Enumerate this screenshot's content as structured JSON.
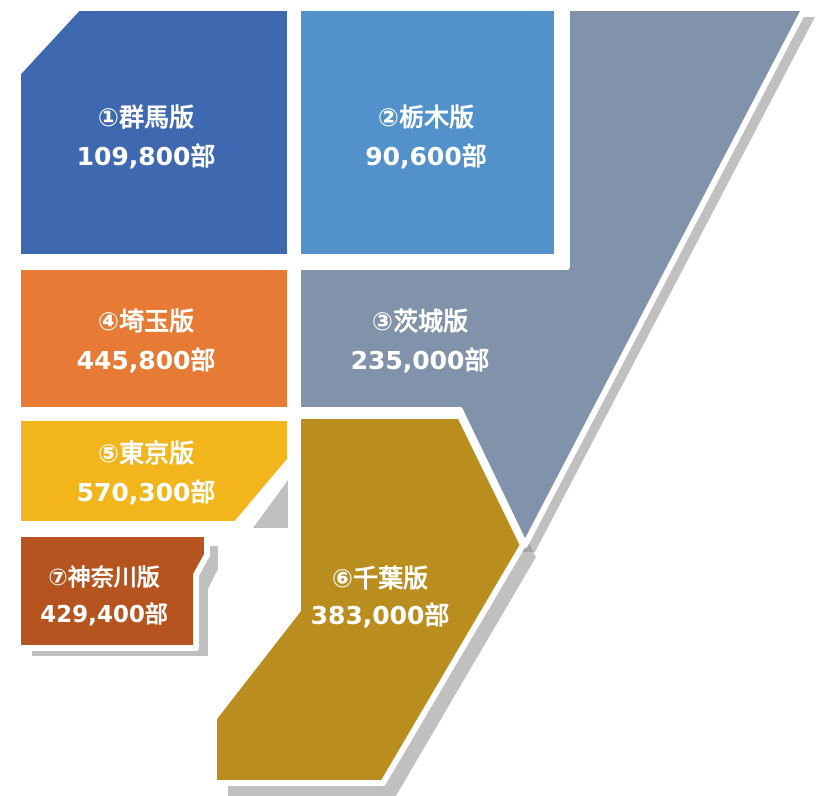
{
  "regions": [
    {
      "name": "①群馬版",
      "copies": "109,800部",
      "color": "#3e69b0"
    },
    {
      "name": "②栃木版",
      "copies": "90,600部",
      "color": "#5291c9"
    },
    {
      "name": "③茨城版",
      "copies": "235,000部",
      "color": "#8093aa"
    },
    {
      "name": "④埼玉版",
      "copies": "445,800部",
      "color": "#e77b36"
    },
    {
      "name": "⑤東京版",
      "copies": "570,300部",
      "color": "#f2b51b"
    },
    {
      "name": "⑥千葉版",
      "copies": "383,000部",
      "color": "#b98e1e"
    },
    {
      "name": "⑦神奈川版",
      "copies": "429,400部",
      "color": "#b6541f"
    }
  ]
}
